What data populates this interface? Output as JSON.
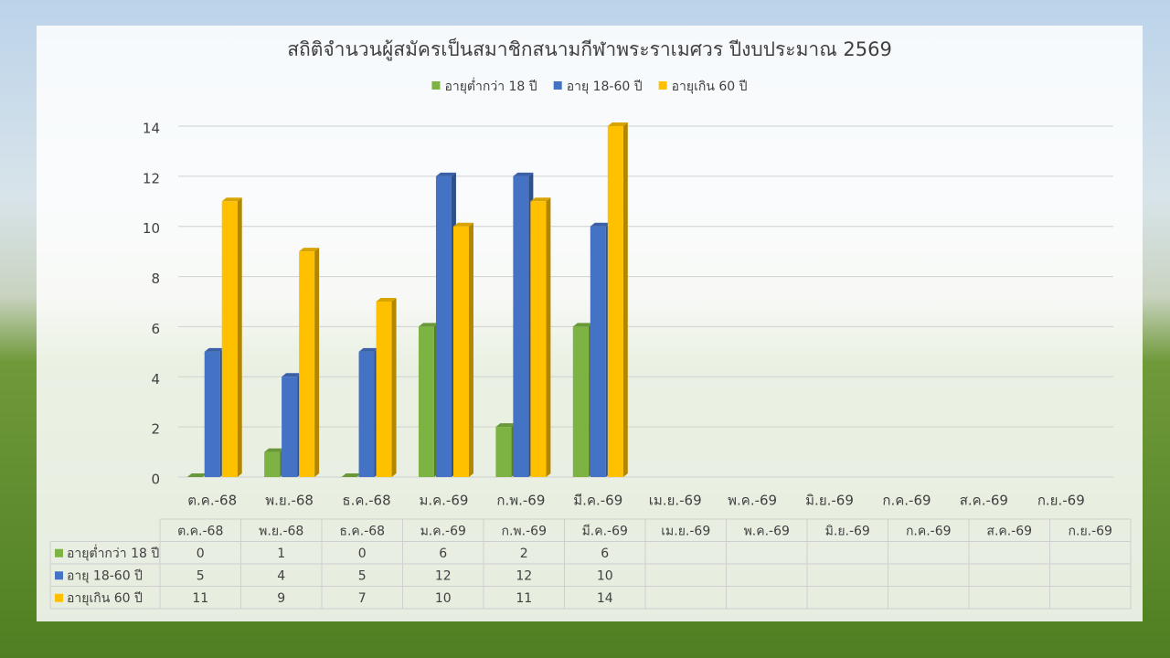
{
  "chart_data": {
    "type": "bar",
    "title": "สถิติจำนวนผู้สมัครเป็นสมาชิกสนามกีฬาพระราเมศวร ปีงบประมาณ 2569",
    "categories": [
      "ต.ค.-68",
      "พ.ย.-68",
      "ธ.ค.-68",
      "ม.ค.-69",
      "ก.พ.-69",
      "มี.ค.-69",
      "เม.ย.-69",
      "พ.ค.-69",
      "มิ.ย.-69",
      "ก.ค.-69",
      "ส.ค.-69",
      "ก.ย.-69"
    ],
    "series": [
      {
        "name": "อายุต่ำกว่า 18 ปี",
        "color": "#7cb342",
        "values": [
          0,
          1,
          0,
          6,
          2,
          6,
          null,
          null,
          null,
          null,
          null,
          null
        ]
      },
      {
        "name": "อายุ 18-60 ปี",
        "color": "#4472c4",
        "values": [
          5,
          4,
          5,
          12,
          12,
          10,
          null,
          null,
          null,
          null,
          null,
          null
        ]
      },
      {
        "name": "อายุเกิน 60 ปี",
        "color": "#ffc000",
        "values": [
          11,
          9,
          7,
          10,
          11,
          14,
          null,
          null,
          null,
          null,
          null,
          null
        ]
      }
    ],
    "ylim": [
      0,
      14
    ],
    "yticks": [
      0,
      2,
      4,
      6,
      8,
      10,
      12,
      14
    ],
    "grid": true,
    "legend": "top",
    "data_table": true
  }
}
